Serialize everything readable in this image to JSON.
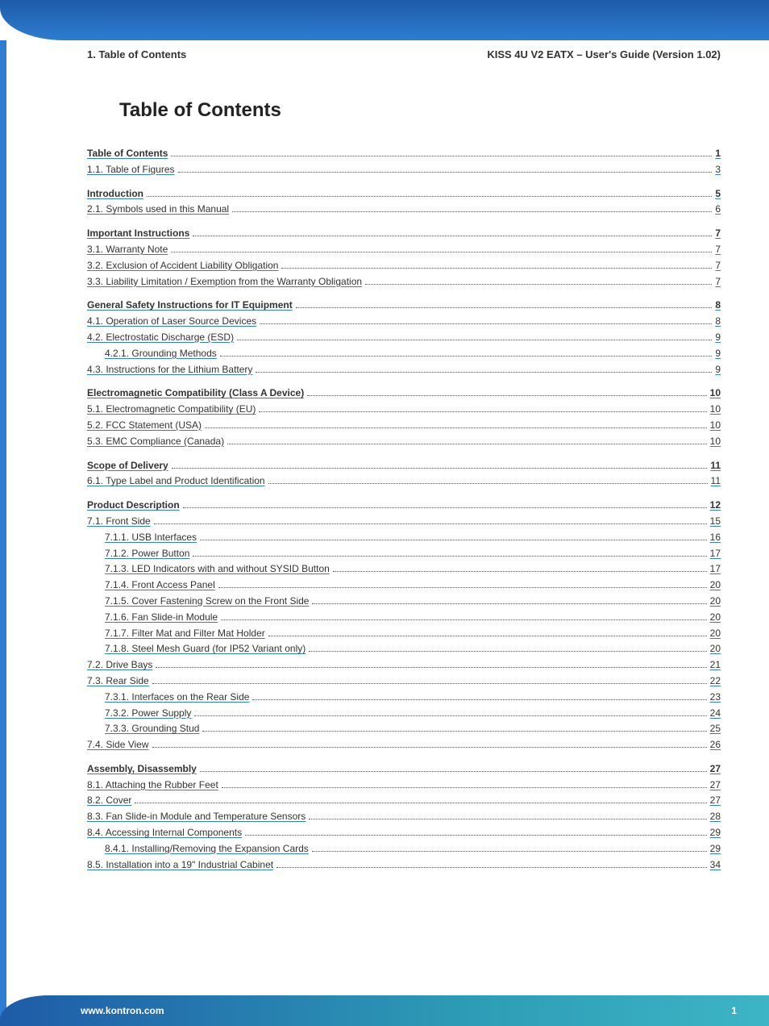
{
  "colors": {
    "header_gradient_top": "#1e5ba8",
    "header_gradient_bottom": "#2d7dd2",
    "left_border": "#2d7dd2",
    "link_underline": "#2d7dd2",
    "footer_gradient_start": "#1e5ba8",
    "footer_gradient_mid": "#2d9bb5",
    "footer_gradient_end": "#3db5c5",
    "text": "#333333",
    "title": "#222222",
    "background": "#ffffff"
  },
  "typography": {
    "body_font": "Arial, sans-serif",
    "header_fontsize": 13,
    "title_fontsize": 24,
    "toc_fontsize": 12,
    "footer_fontsize": 12
  },
  "header": {
    "left": "1. Table of Contents",
    "right": "KISS 4U V2 EATX – User's Guide (Version 1.02)"
  },
  "title": "Table of Contents",
  "toc": [
    {
      "label": "Table of Contents",
      "page": "1",
      "level": 0,
      "chapter": true
    },
    {
      "label": "1.1. Table of Figures",
      "page": "3",
      "level": 0
    },
    {
      "label": "Introduction",
      "page": "5",
      "level": 0,
      "chapter": true
    },
    {
      "label": "2.1. Symbols used in this Manual",
      "page": "6",
      "level": 0
    },
    {
      "label": "Important Instructions",
      "page": "7",
      "level": 0,
      "chapter": true
    },
    {
      "label": "3.1. Warranty Note",
      "page": "7",
      "level": 0
    },
    {
      "label": "3.2. Exclusion of Accident Liability Obligation",
      "page": "7",
      "level": 0
    },
    {
      "label": "3.3. Liability Limitation / Exemption from the Warranty Obligation",
      "page": "7",
      "level": 0
    },
    {
      "label": "General Safety Instructions for IT Equipment",
      "page": "8",
      "level": 0,
      "chapter": true
    },
    {
      "label": "4.1. Operation of Laser Source Devices",
      "page": "8",
      "level": 0
    },
    {
      "label": "4.2. Electrostatic Discharge (ESD)",
      "page": "9",
      "level": 0
    },
    {
      "label": "4.2.1. Grounding Methods",
      "page": "9",
      "level": 1
    },
    {
      "label": "4.3. Instructions for the Lithium Battery",
      "page": "9",
      "level": 0
    },
    {
      "label": "Electromagnetic Compatibility (Class A Device)",
      "page": "10",
      "level": 0,
      "chapter": true
    },
    {
      "label": "5.1. Electromagnetic Compatibility (EU)",
      "page": "10",
      "level": 0
    },
    {
      "label": "5.2. FCC Statement (USA)",
      "page": "10",
      "level": 0
    },
    {
      "label": "5.3. EMC Compliance (Canada)",
      "page": "10",
      "level": 0
    },
    {
      "label": "Scope of Delivery",
      "page": "11",
      "level": 0,
      "chapter": true
    },
    {
      "label": "6.1. Type Label and Product Identification",
      "page": "11",
      "level": 0
    },
    {
      "label": "Product Description",
      "page": "12",
      "level": 0,
      "chapter": true
    },
    {
      "label": "7.1. Front Side",
      "page": "15",
      "level": 0
    },
    {
      "label": "7.1.1. USB Interfaces",
      "page": "16",
      "level": 1
    },
    {
      "label": "7.1.2. Power Button",
      "page": "17",
      "level": 1
    },
    {
      "label": "7.1.3. LED Indicators with and without SYSID Button",
      "page": "17",
      "level": 1
    },
    {
      "label": "7.1.4. Front Access Panel",
      "page": "20",
      "level": 1
    },
    {
      "label": "7.1.5. Cover Fastening Screw on the Front Side",
      "page": "20",
      "level": 1
    },
    {
      "label": "7.1.6. Fan Slide-in Module",
      "page": "20",
      "level": 1
    },
    {
      "label": "7.1.7. Filter Mat and Filter Mat Holder",
      "page": "20",
      "level": 1
    },
    {
      "label": "7.1.8. Steel Mesh Guard (for IP52 Variant only)",
      "page": "20",
      "level": 1
    },
    {
      "label": "7.2. Drive Bays",
      "page": "21",
      "level": 0
    },
    {
      "label": "7.3. Rear Side",
      "page": "22",
      "level": 0
    },
    {
      "label": "7.3.1. Interfaces on the Rear Side",
      "page": "23",
      "level": 1
    },
    {
      "label": "7.3.2. Power Supply",
      "page": "24",
      "level": 1
    },
    {
      "label": "7.3.3. Grounding Stud",
      "page": "25",
      "level": 1
    },
    {
      "label": "7.4. Side View",
      "page": "26",
      "level": 0
    },
    {
      "label": "Assembly, Disassembly",
      "page": "27",
      "level": 0,
      "chapter": true
    },
    {
      "label": "8.1. Attaching the Rubber Feet",
      "page": "27",
      "level": 0
    },
    {
      "label": "8.2. Cover",
      "page": "27",
      "level": 0
    },
    {
      "label": "8.3. Fan Slide-in Module and Temperature Sensors",
      "page": "28",
      "level": 0
    },
    {
      "label": "8.4. Accessing Internal Components",
      "page": "29",
      "level": 0
    },
    {
      "label": "8.4.1. Installing/Removing the Expansion Cards",
      "page": "29",
      "level": 1
    },
    {
      "label": "8.5. Installation into a 19\" Industrial Cabinet",
      "page": "34",
      "level": 0
    }
  ],
  "footer": {
    "url": "www.kontron.com",
    "page_number": "1"
  }
}
